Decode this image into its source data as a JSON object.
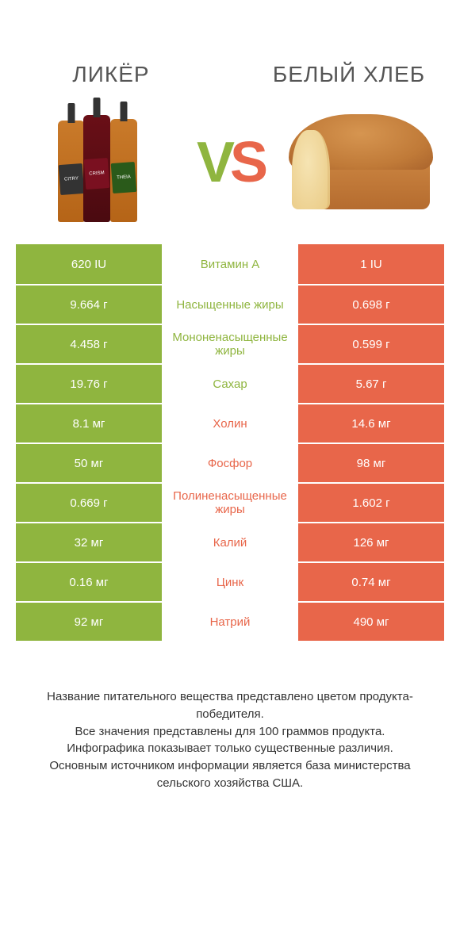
{
  "header": {
    "left_title": "ЛИКЁР",
    "right_title": "БЕЛЫЙ ХЛЕБ",
    "vs_v": "V",
    "vs_s": "S"
  },
  "colors": {
    "green": "#8fb53f",
    "orange": "#e8664a",
    "mid_green_text": "#8fb53f",
    "mid_orange_text": "#e8664a"
  },
  "rows": [
    {
      "left": "620 IU",
      "mid": "Витамин A",
      "right": "1 IU",
      "winner": "left"
    },
    {
      "left": "9.664 г",
      "mid": "Насыщенные жиры",
      "right": "0.698 г",
      "winner": "left"
    },
    {
      "left": "4.458 г",
      "mid": "Мононенасыщенные жиры",
      "right": "0.599 г",
      "winner": "left"
    },
    {
      "left": "19.76 г",
      "mid": "Сахар",
      "right": "5.67 г",
      "winner": "left"
    },
    {
      "left": "8.1 мг",
      "mid": "Холин",
      "right": "14.6 мг",
      "winner": "right"
    },
    {
      "left": "50 мг",
      "mid": "Фосфор",
      "right": "98 мг",
      "winner": "right"
    },
    {
      "left": "0.669 г",
      "mid": "Полиненасыщенные жиры",
      "right": "1.602 г",
      "winner": "right"
    },
    {
      "left": "32 мг",
      "mid": "Калий",
      "right": "126 мг",
      "winner": "right"
    },
    {
      "left": "0.16 мг",
      "mid": "Цинк",
      "right": "0.74 мг",
      "winner": "right"
    },
    {
      "left": "92 мг",
      "mid": "Натрий",
      "right": "490 мг",
      "winner": "right"
    }
  ],
  "footer": {
    "line1": "Название питательного вещества представлено цветом продукта-победителя.",
    "line2": "Все значения представлены для 100 граммов продукта.",
    "line3": "Инфографика показывает только существенные различия.",
    "line4": "Основным источником информации является база министерства сельского хозяйства США."
  }
}
